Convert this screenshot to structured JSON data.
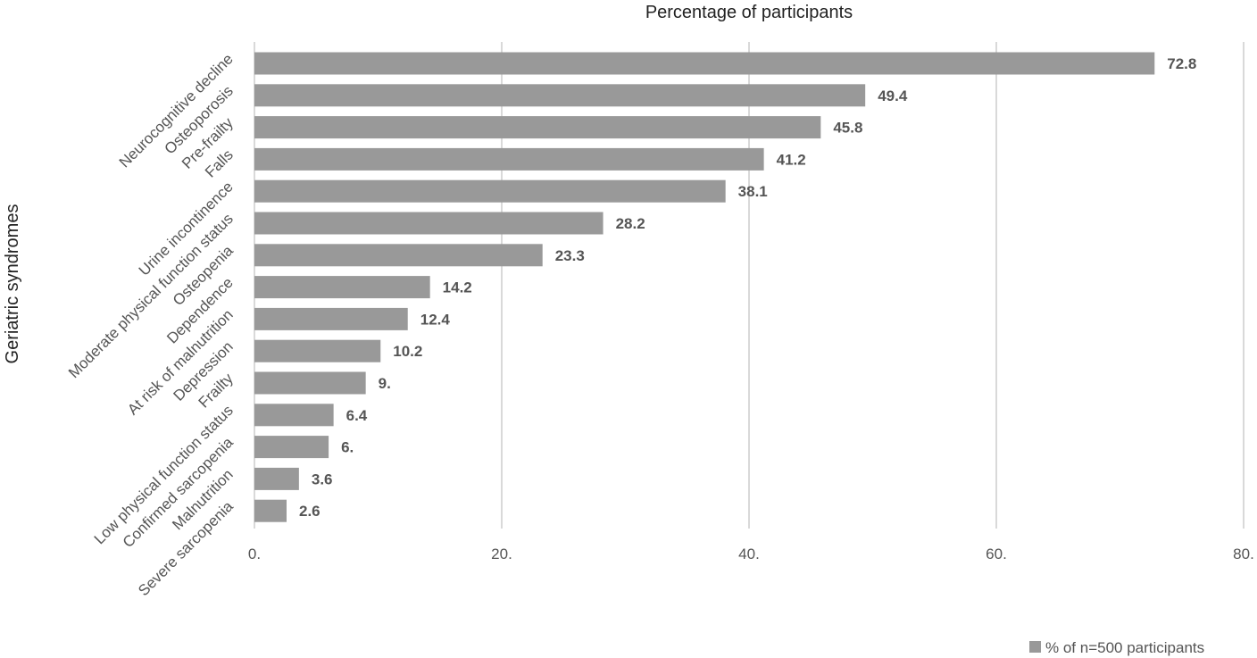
{
  "chart_data": {
    "type": "bar",
    "orientation": "horizontal",
    "title": "",
    "xlabel": "Percentage of participants",
    "ylabel": "Geriatric syndromes",
    "categories": [
      "Neurocognitive decline",
      "Osteoporosis",
      "Pre-frailty",
      "Falls",
      "Urine incontinence",
      "Moderate physical function status",
      "Osteopenia",
      "Dependence",
      "At risk of malnutrition",
      "Depression",
      "Frailty",
      "Low physical function status",
      "Confirmed sarcopenia",
      "Malnutrition",
      "Severe sarcopenia"
    ],
    "series": [
      {
        "name": "% of n=500 participants",
        "values": [
          72.8,
          49.4,
          45.8,
          41.2,
          38.1,
          28.2,
          23.3,
          14.2,
          12.4,
          10.2,
          9.0,
          6.4,
          6.0,
          3.6,
          2.6
        ],
        "labels": [
          "72.8",
          "49.4",
          "45.8",
          "41.2",
          "38.1",
          "28.2",
          "23.3",
          "14.2",
          "12.4",
          "10.2",
          "9.",
          "6.4",
          "6.",
          "3.6",
          "2.6"
        ]
      }
    ],
    "xlim": [
      0,
      80
    ],
    "xticks": [
      0,
      20,
      40,
      60,
      80
    ],
    "xtick_labels": [
      "0.",
      "20.",
      "40.",
      "60.",
      "80."
    ],
    "xaxis_position": "top-title-bottom-ticks",
    "grid": true,
    "legend": "bottom-right",
    "colors": {
      "bar": "#999999",
      "grid": "#d9d9d9",
      "text": "#555555"
    }
  }
}
